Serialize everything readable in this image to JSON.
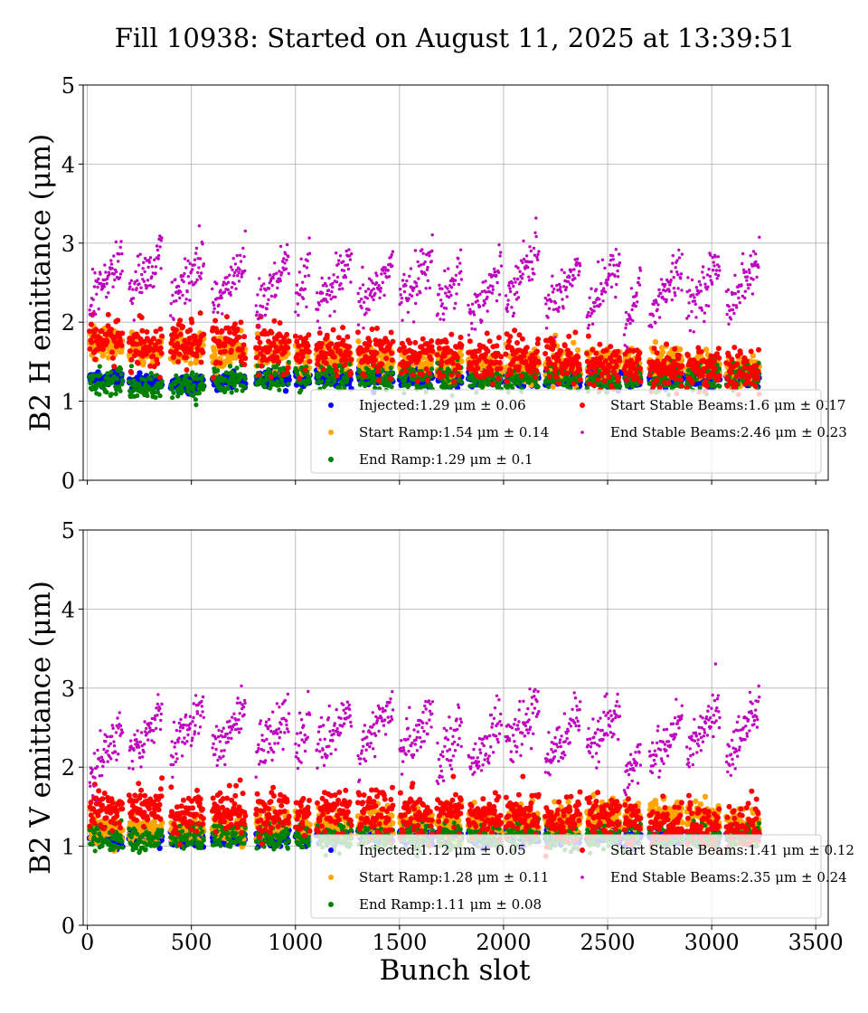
{
  "figure": {
    "title": "Fill 10938: Started on August 11, 2025 at 13:39:51",
    "xlabel": "Bunch slot"
  },
  "colors": {
    "injected": "#0000ff",
    "start_ramp": "#ffa500",
    "end_ramp": "#008000",
    "start_stable": "#ff0000",
    "end_stable": "#bf00bf"
  },
  "chart_data": [
    {
      "type": "scatter",
      "ylabel": "B2 H emittance (μm)",
      "xlim": [
        -20,
        3560
      ],
      "ylim": [
        0,
        5
      ],
      "xticks": [
        "0",
        "500",
        "1000",
        "1500",
        "2000",
        "2500",
        "3000",
        "3500"
      ],
      "yticks": [
        "0",
        "1",
        "2",
        "3",
        "4",
        "5"
      ],
      "grid": true,
      "xtick_labels_shown": false,
      "legend": "lower-right",
      "series": [
        {
          "key": "injected",
          "name": "Injected:1.29 μm ± 0.06",
          "mean": 1.29,
          "std": 0.06,
          "color": "#0000ff"
        },
        {
          "key": "start_ramp",
          "name": "Start Ramp:1.54 μm ± 0.14",
          "mean": 1.54,
          "std": 0.14,
          "color": "#ffa500"
        },
        {
          "key": "end_ramp",
          "name": "End Ramp:1.29 μm ± 0.1",
          "mean": 1.29,
          "std": 0.1,
          "color": "#008000"
        },
        {
          "key": "start_stable",
          "name": "Start Stable Beams:1.6 μm ± 0.17",
          "mean": 1.6,
          "std": 0.17,
          "color": "#ff0000"
        },
        {
          "key": "end_stable",
          "name": "End Stable Beams:2.46 μm ± 0.23",
          "mean": 2.46,
          "std": 0.23,
          "color": "#bf00bf"
        }
      ],
      "trains": [
        {
          "start": 10,
          "end": 170,
          "injected": 1.28,
          "start_ramp": 1.72,
          "end_ramp": 1.25,
          "start_stable": 1.78,
          "end_stable": 2.55
        },
        {
          "start": 200,
          "end": 360,
          "injected": 1.24,
          "start_ramp": 1.65,
          "end_ramp": 1.18,
          "start_stable": 1.7,
          "end_stable": 2.6
        },
        {
          "start": 400,
          "end": 560,
          "injected": 1.22,
          "start_ramp": 1.68,
          "end_ramp": 1.2,
          "start_stable": 1.72,
          "end_stable": 2.55
        },
        {
          "start": 600,
          "end": 760,
          "injected": 1.27,
          "start_ramp": 1.62,
          "end_ramp": 1.27,
          "start_stable": 1.72,
          "end_stable": 2.5
        },
        {
          "start": 810,
          "end": 970,
          "injected": 1.28,
          "start_ramp": 1.6,
          "end_ramp": 1.3,
          "start_stable": 1.68,
          "end_stable": 2.45
        },
        {
          "start": 1000,
          "end": 1070,
          "injected": 1.29,
          "start_ramp": 1.55,
          "end_ramp": 1.32,
          "start_stable": 1.65,
          "end_stable": 2.5
        },
        {
          "start": 1100,
          "end": 1270,
          "injected": 1.3,
          "start_ramp": 1.55,
          "end_ramp": 1.33,
          "start_stable": 1.62,
          "end_stable": 2.45
        },
        {
          "start": 1300,
          "end": 1470,
          "injected": 1.3,
          "start_ramp": 1.5,
          "end_ramp": 1.3,
          "start_stable": 1.6,
          "end_stable": 2.45
        },
        {
          "start": 1500,
          "end": 1660,
          "injected": 1.29,
          "start_ramp": 1.48,
          "end_ramp": 1.29,
          "start_stable": 1.55,
          "end_stable": 2.55
        },
        {
          "start": 1680,
          "end": 1800,
          "injected": 1.3,
          "start_ramp": 1.5,
          "end_ramp": 1.3,
          "start_stable": 1.58,
          "end_stable": 2.45
        },
        {
          "start": 1830,
          "end": 1990,
          "injected": 1.3,
          "start_ramp": 1.45,
          "end_ramp": 1.28,
          "start_stable": 1.52,
          "end_stable": 2.35
        },
        {
          "start": 2010,
          "end": 2170,
          "injected": 1.32,
          "start_ramp": 1.45,
          "end_ramp": 1.29,
          "start_stable": 1.55,
          "end_stable": 2.65
        },
        {
          "start": 2200,
          "end": 2370,
          "injected": 1.3,
          "start_ramp": 1.45,
          "end_ramp": 1.3,
          "start_stable": 1.55,
          "end_stable": 2.45
        },
        {
          "start": 2400,
          "end": 2560,
          "injected": 1.29,
          "start_ramp": 1.48,
          "end_ramp": 1.28,
          "start_stable": 1.45,
          "end_stable": 2.45
        },
        {
          "start": 2580,
          "end": 2660,
          "injected": 1.29,
          "start_ramp": 1.5,
          "end_ramp": 1.3,
          "start_stable": 1.45,
          "end_stable": 2.2
        },
        {
          "start": 2700,
          "end": 2860,
          "injected": 1.3,
          "start_ramp": 1.5,
          "end_ramp": 1.3,
          "start_stable": 1.42,
          "end_stable": 2.4
        },
        {
          "start": 2880,
          "end": 3040,
          "injected": 1.29,
          "start_ramp": 1.45,
          "end_ramp": 1.3,
          "start_stable": 1.42,
          "end_stable": 2.45
        },
        {
          "start": 3070,
          "end": 3230,
          "injected": 1.29,
          "start_ramp": 1.38,
          "end_ramp": 1.3,
          "start_stable": 1.35,
          "end_stable": 2.5
        }
      ]
    },
    {
      "type": "scatter",
      "ylabel": "B2 V emittance (μm)",
      "xlim": [
        -20,
        3560
      ],
      "ylim": [
        0,
        5
      ],
      "xticks": [
        "0",
        "500",
        "1000",
        "1500",
        "2000",
        "2500",
        "3000",
        "3500"
      ],
      "yticks": [
        "0",
        "1",
        "2",
        "3",
        "4",
        "5"
      ],
      "grid": true,
      "xtick_labels_shown": true,
      "legend": "lower-right",
      "series": [
        {
          "key": "injected",
          "name": "Injected:1.12 μm ± 0.05",
          "mean": 1.12,
          "std": 0.05,
          "color": "#0000ff"
        },
        {
          "key": "start_ramp",
          "name": "Start Ramp:1.28 μm ± 0.11",
          "mean": 1.28,
          "std": 0.11,
          "color": "#ffa500"
        },
        {
          "key": "end_ramp",
          "name": "End Ramp:1.11 μm ± 0.08",
          "mean": 1.11,
          "std": 0.08,
          "color": "#008000"
        },
        {
          "key": "start_stable",
          "name": "Start Stable Beams:1.41 μm ± 0.12",
          "mean": 1.41,
          "std": 0.12,
          "color": "#ff0000"
        },
        {
          "key": "end_stable",
          "name": "End Stable Beams:2.35 μm ± 0.24",
          "mean": 2.35,
          "std": 0.24,
          "color": "#bf00bf"
        }
      ],
      "trains": [
        {
          "start": 10,
          "end": 170,
          "injected": 1.1,
          "start_ramp": 1.22,
          "end_ramp": 1.1,
          "start_stable": 1.45,
          "end_stable": 2.2
        },
        {
          "start": 200,
          "end": 360,
          "injected": 1.1,
          "start_ramp": 1.2,
          "end_ramp": 1.08,
          "start_stable": 1.55,
          "end_stable": 2.45
        },
        {
          "start": 400,
          "end": 560,
          "injected": 1.1,
          "start_ramp": 1.2,
          "end_ramp": 1.1,
          "start_stable": 1.4,
          "end_stable": 2.5
        },
        {
          "start": 600,
          "end": 760,
          "injected": 1.1,
          "start_ramp": 1.22,
          "end_ramp": 1.12,
          "start_stable": 1.42,
          "end_stable": 2.45
        },
        {
          "start": 810,
          "end": 970,
          "injected": 1.11,
          "start_ramp": 1.25,
          "end_ramp": 1.12,
          "start_stable": 1.42,
          "end_stable": 2.45
        },
        {
          "start": 1000,
          "end": 1070,
          "injected": 1.12,
          "start_ramp": 1.25,
          "end_ramp": 1.12,
          "start_stable": 1.4,
          "end_stable": 2.4
        },
        {
          "start": 1100,
          "end": 1270,
          "injected": 1.12,
          "start_ramp": 1.28,
          "end_ramp": 1.12,
          "start_stable": 1.42,
          "end_stable": 2.45
        },
        {
          "start": 1300,
          "end": 1470,
          "injected": 1.12,
          "start_ramp": 1.28,
          "end_ramp": 1.11,
          "start_stable": 1.42,
          "end_stable": 2.45
        },
        {
          "start": 1500,
          "end": 1660,
          "injected": 1.12,
          "start_ramp": 1.28,
          "end_ramp": 1.11,
          "start_stable": 1.4,
          "end_stable": 2.45
        },
        {
          "start": 1680,
          "end": 1800,
          "injected": 1.12,
          "start_ramp": 1.3,
          "end_ramp": 1.12,
          "start_stable": 1.42,
          "end_stable": 2.3
        },
        {
          "start": 1830,
          "end": 1990,
          "injected": 1.12,
          "start_ramp": 1.3,
          "end_ramp": 1.12,
          "start_stable": 1.38,
          "end_stable": 2.3
        },
        {
          "start": 2010,
          "end": 2170,
          "injected": 1.13,
          "start_ramp": 1.3,
          "end_ramp": 1.12,
          "start_stable": 1.38,
          "end_stable": 2.5
        },
        {
          "start": 2200,
          "end": 2370,
          "injected": 1.12,
          "start_ramp": 1.3,
          "end_ramp": 1.12,
          "start_stable": 1.35,
          "end_stable": 2.4
        },
        {
          "start": 2400,
          "end": 2560,
          "injected": 1.12,
          "start_ramp": 1.38,
          "end_ramp": 1.12,
          "start_stable": 1.35,
          "end_stable": 2.45
        },
        {
          "start": 2580,
          "end": 2660,
          "injected": 1.12,
          "start_ramp": 1.42,
          "end_ramp": 1.13,
          "start_stable": 1.32,
          "end_stable": 2.05
        },
        {
          "start": 2700,
          "end": 2860,
          "injected": 1.12,
          "start_ramp": 1.42,
          "end_ramp": 1.12,
          "start_stable": 1.3,
          "end_stable": 2.3
        },
        {
          "start": 2880,
          "end": 3040,
          "injected": 1.12,
          "start_ramp": 1.38,
          "end_ramp": 1.12,
          "start_stable": 1.28,
          "end_stable": 2.45
        },
        {
          "start": 3070,
          "end": 3230,
          "injected": 1.12,
          "start_ramp": 1.25,
          "end_ramp": 1.12,
          "start_stable": 1.25,
          "end_stable": 2.45
        }
      ]
    }
  ]
}
